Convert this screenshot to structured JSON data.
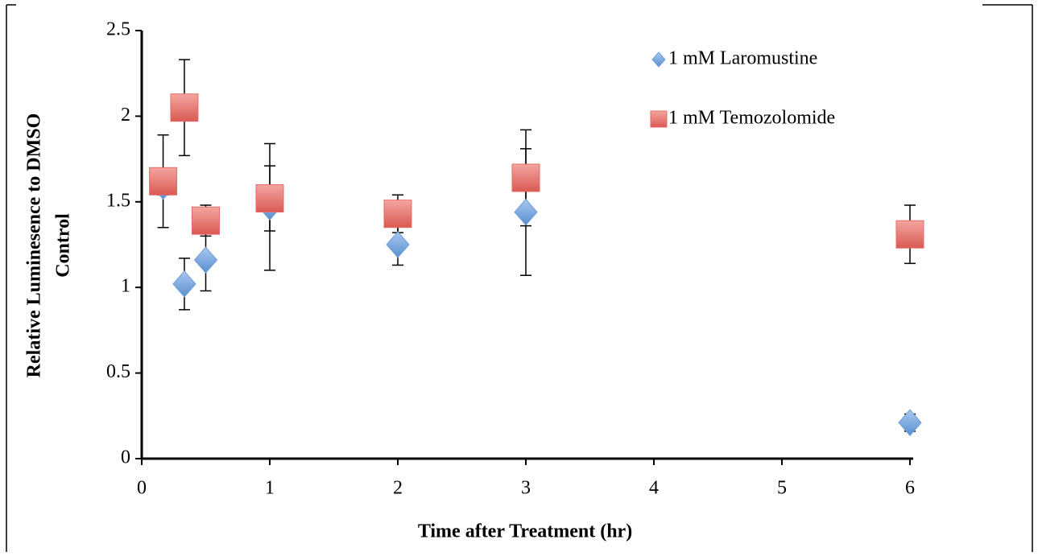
{
  "chart_data": {
    "type": "scatter",
    "x_label": "Time after Treatment (hr)",
    "y_label": [
      "Relative Luminesence to DMSO",
      "Control"
    ],
    "xlim": [
      0,
      6
    ],
    "xticks": [
      0,
      1,
      2,
      3,
      4,
      5,
      6
    ],
    "ylim": [
      0,
      2.5
    ],
    "yticks": [
      0,
      0.5,
      1,
      1.5,
      2,
      2.5
    ],
    "legend": "top-right",
    "series": [
      {
        "name": "1 mM Laromustine",
        "color": "#6f9fd8",
        "marker": "diamond",
        "x": [
          0.167,
          0.333,
          0.5,
          1,
          2,
          3,
          6
        ],
        "values": [
          1.59,
          1.02,
          1.16,
          1.47,
          1.25,
          1.44,
          0.21
        ],
        "errors": [
          0.05,
          0.15,
          0.18,
          0.37,
          0.12,
          0.37,
          0.05
        ]
      },
      {
        "name": "1 mM Temozolomide",
        "color": "#e46c66",
        "marker": "square",
        "x": [
          0.167,
          0.333,
          0.5,
          1,
          2,
          3,
          6
        ],
        "values": [
          1.62,
          2.05,
          1.39,
          1.52,
          1.43,
          1.64,
          1.31
        ],
        "errors": [
          0.27,
          0.28,
          0.09,
          0.19,
          0.11,
          0.28,
          0.17
        ]
      }
    ]
  }
}
